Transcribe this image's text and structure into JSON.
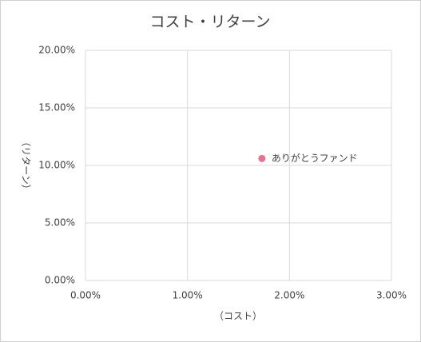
{
  "chart_data": {
    "type": "scatter",
    "title": "コスト・リターン",
    "x_label": "（コスト）",
    "y_label": "（リターン）",
    "series": [
      {
        "name": "ありがとうファンド",
        "color": "#e8718d",
        "x": [
          1.73
        ],
        "values": [
          10.6
        ]
      }
    ],
    "xlim": [
      0,
      3
    ],
    "xticks": [
      {
        "value": 0,
        "label": "0.00%"
      },
      {
        "value": 1,
        "label": "1.00%"
      },
      {
        "value": 2,
        "label": "2.00%"
      },
      {
        "value": 3,
        "label": "3.00%"
      }
    ],
    "ylim": [
      0,
      20
    ],
    "yticks": [
      {
        "value": 0,
        "label": "0.00%"
      },
      {
        "value": 5,
        "label": "5.00%"
      },
      {
        "value": 10,
        "label": "10.00%"
      },
      {
        "value": 15,
        "label": "15.00%"
      },
      {
        "value": 20,
        "label": "20.00%"
      }
    ],
    "grid": true
  }
}
